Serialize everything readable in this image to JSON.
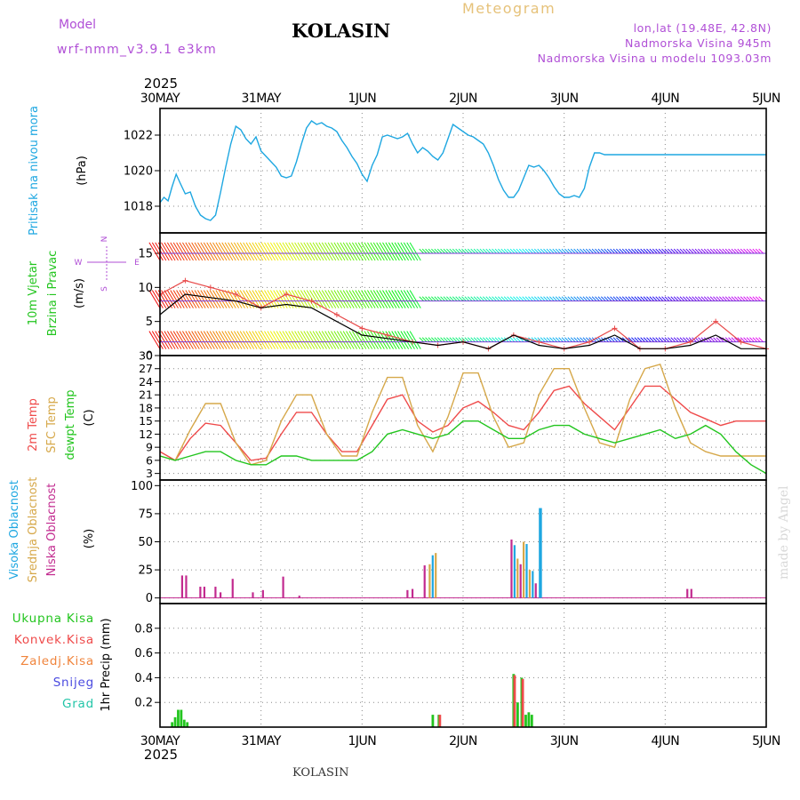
{
  "header": {
    "model_label": "Model",
    "model_name": "wrf-nmm_v3.9.1  e3km",
    "city": "KOLASIN",
    "title": "Meteogram",
    "lonlat": "lon,lat (19.48E, 42.8N)",
    "altitude": "Nadmorska Visina 945m",
    "model_altitude": "Nadmorska Visina u modelu 1093.03m",
    "watermark": "made by Angel",
    "footer_city": "KOLASIN"
  },
  "colors": {
    "pressure": "#1ea7e1",
    "t2m": "#ef4a4a",
    "sfc": "#d6a84a",
    "dew": "#22c51e",
    "wind_gust": "#e84a4a",
    "wind_speed": "#000000",
    "cloud_high": "#1ea7e1",
    "cloud_mid": "#d6a84a",
    "cloud_low": "#c22a8f",
    "precip_total": "#22c51e",
    "precip_conv": "#ef4a4a",
    "precip_ice": "#f0843c",
    "precip_snow": "#4a4ae0",
    "precip_hail": "#22c5a8",
    "purple_text": "#b04fd6"
  },
  "chart_data": [
    {
      "type": "line",
      "panel": "pressure",
      "ylabel": "Pritisak na nivou mora",
      "unit": "(hPa)",
      "ylim": [
        1016.5,
        1023.5
      ],
      "yticks": [
        1018,
        1020,
        1022
      ],
      "x_days": [
        "30MAY",
        "31MAY",
        "1JUN",
        "2JUN",
        "3JUN",
        "4JUN",
        "5JUN"
      ],
      "year": "2025",
      "x": [
        0,
        0.04,
        0.08,
        0.12,
        0.16,
        0.2,
        0.25,
        0.3,
        0.35,
        0.4,
        0.45,
        0.5,
        0.55,
        0.6,
        0.65,
        0.7,
        0.75,
        0.8,
        0.85,
        0.9,
        0.95,
        1.0,
        1.05,
        1.1,
        1.15,
        1.2,
        1.25,
        1.3,
        1.35,
        1.4,
        1.45,
        1.5,
        1.55,
        1.6,
        1.65,
        1.7,
        1.75,
        1.8,
        1.85,
        1.9,
        1.95,
        2.0,
        2.05,
        2.1,
        2.15,
        2.2,
        2.25,
        2.3,
        2.35,
        2.4,
        2.45,
        2.5,
        2.55,
        2.6,
        2.65,
        2.7,
        2.75,
        2.8,
        2.85,
        2.9,
        2.95,
        3.0,
        3.05,
        3.1,
        3.15,
        3.2,
        3.25,
        3.3,
        3.35,
        3.4,
        3.45,
        3.5,
        3.55,
        3.6,
        3.65,
        3.7,
        3.75,
        3.8,
        3.85,
        3.9,
        3.95,
        4.0,
        4.05,
        4.1,
        4.15,
        4.2,
        4.25,
        4.3,
        4.35,
        4.4,
        4.45,
        4.5,
        4.55,
        4.6,
        4.65,
        4.7,
        4.75,
        4.8,
        4.85,
        4.9,
        4.95,
        5.0,
        5.05,
        5.1,
        5.15,
        5.2,
        5.25,
        5.3,
        5.35,
        5.4,
        5.45,
        5.5,
        5.55,
        5.6,
        5.65,
        5.7,
        5.75,
        5.8,
        5.85,
        5.9,
        5.95,
        6.0
      ],
      "values": [
        1018.2,
        1018.5,
        1018.3,
        1019.1,
        1019.8,
        1019.3,
        1018.7,
        1018.8,
        1018.0,
        1017.5,
        1017.3,
        1017.2,
        1017.5,
        1018.8,
        1020.2,
        1021.5,
        1022.5,
        1022.3,
        1021.8,
        1021.5,
        1021.9,
        1021.1,
        1020.8,
        1020.5,
        1020.2,
        1019.7,
        1019.6,
        1019.7,
        1020.5,
        1021.5,
        1022.4,
        1022.8,
        1022.6,
        1022.7,
        1022.5,
        1022.4,
        1022.2,
        1021.7,
        1021.3,
        1020.8,
        1020.4,
        1019.8,
        1019.4,
        1020.3,
        1020.9,
        1021.9,
        1022.0,
        1021.9,
        1021.8,
        1021.9,
        1022.1,
        1021.5,
        1021.0,
        1021.3,
        1021.1,
        1020.8,
        1020.6,
        1021.0,
        1021.8,
        1022.6,
        1022.4,
        1022.2,
        1022.0,
        1021.9,
        1021.7,
        1021.5,
        1021.0,
        1020.3,
        1019.5,
        1018.9,
        1018.5,
        1018.5,
        1018.9,
        1019.6,
        1020.3,
        1020.2,
        1020.3,
        1020.0,
        1019.6,
        1019.1,
        1018.7,
        1018.5,
        1018.5,
        1018.6,
        1018.5,
        1019.0,
        1020.2,
        1021.0,
        1021.0,
        1020.9,
        1020.9,
        1020.9,
        1020.9,
        1020.9,
        1020.9,
        1020.9,
        1020.9,
        1020.9,
        1020.9,
        1020.9,
        1020.9,
        1020.9,
        1020.9,
        1020.9,
        1020.9,
        1020.9,
        1020.9,
        1020.9,
        1020.9,
        1020.9,
        1020.9,
        1020.9,
        1020.9,
        1020.9,
        1020.9,
        1020.9,
        1020.9,
        1020.9,
        1020.9,
        1020.9,
        1020.9,
        1020.9
      ]
    },
    {
      "type": "line",
      "panel": "wind",
      "ylabel_a": "10m Vjetar",
      "ylabel_b": "Brzina i Pravac",
      "unit": "(m/s)",
      "compass": [
        "N",
        "W",
        "E",
        "S"
      ],
      "ylim": [
        0,
        18
      ],
      "yticks": [
        0,
        5,
        10,
        15
      ],
      "series": [
        {
          "name": "gust",
          "x": [
            0,
            0.25,
            0.5,
            0.75,
            1.0,
            1.25,
            1.5,
            1.75,
            2.0,
            2.25,
            2.5,
            2.75,
            3.0,
            3.25,
            3.5,
            3.75,
            4.0,
            4.25,
            4.5,
            4.75,
            5.0,
            5.25,
            5.5,
            5.75,
            6.0
          ],
          "values": [
            9,
            11,
            10,
            9,
            7,
            9,
            8,
            6,
            4,
            3,
            2,
            1.5,
            2,
            1,
            3,
            2,
            1,
            2,
            4,
            1,
            1,
            2,
            5,
            2,
            1
          ]
        },
        {
          "name": "speed",
          "x": [
            0,
            0.25,
            0.5,
            0.75,
            1.0,
            1.25,
            1.5,
            1.75,
            2.0,
            2.25,
            2.5,
            2.75,
            3.0,
            3.25,
            3.5,
            3.75,
            4.0,
            4.25,
            4.5,
            4.75,
            5.0,
            5.25,
            5.5,
            5.75,
            6.0
          ],
          "values": [
            6,
            9,
            8.5,
            8,
            7,
            7.5,
            7,
            5,
            3,
            2.5,
            2,
            1.5,
            2,
            1,
            3,
            1.5,
            1,
            1.5,
            3,
            1,
            1,
            1.5,
            3,
            1,
            1
          ]
        }
      ],
      "barb_rows": [
        15,
        8,
        2
      ],
      "barb_row_end": 2.6
    },
    {
      "type": "line",
      "panel": "temperature",
      "labels": [
        "2m Temp",
        "SFC Temp",
        "dewpt Temp"
      ],
      "unit": "(C)",
      "ylim": [
        1.5,
        30
      ],
      "yticks": [
        3,
        6,
        9,
        12,
        15,
        18,
        21,
        24,
        27,
        30
      ],
      "x": [
        0,
        0.15,
        0.3,
        0.45,
        0.6,
        0.75,
        0.9,
        1.05,
        1.2,
        1.35,
        1.5,
        1.65,
        1.8,
        1.95,
        2.1,
        2.25,
        2.4,
        2.55,
        2.7,
        2.85,
        3.0,
        3.15,
        3.3,
        3.45,
        3.6,
        3.75,
        3.9,
        4.05,
        4.2,
        4.35,
        4.5,
        4.65,
        4.8,
        4.95,
        5.1,
        5.25,
        5.4,
        5.55,
        5.7,
        5.85,
        6.0
      ],
      "series": [
        {
          "name": "2m Temp",
          "values": [
            8,
            6,
            11,
            14.5,
            14,
            10,
            6,
            6.5,
            12,
            17,
            17,
            12,
            8,
            8,
            14,
            20,
            21,
            15,
            12.5,
            14,
            18,
            19.5,
            17,
            14,
            13,
            17,
            22,
            23,
            19,
            16,
            13,
            18,
            23,
            23,
            20,
            17,
            15.5,
            14,
            15,
            15,
            15
          ]
        },
        {
          "name": "SFC Temp",
          "values": [
            7,
            6,
            13,
            19,
            19,
            10,
            5,
            6,
            15,
            21,
            21,
            12,
            7,
            7,
            17,
            25,
            25,
            14,
            8,
            16,
            26,
            26,
            16,
            9,
            10,
            21,
            27,
            27,
            18,
            10,
            9,
            20,
            27,
            28,
            18,
            10,
            8,
            7,
            7,
            7,
            7
          ]
        },
        {
          "name": "dewpt Temp",
          "values": [
            7,
            6,
            7,
            8,
            8,
            6,
            5,
            5,
            7,
            7,
            6,
            6,
            6,
            6,
            8,
            12,
            13,
            12,
            11,
            12,
            15,
            15,
            13,
            11,
            11,
            13,
            14,
            14,
            12,
            11,
            10,
            11,
            12,
            13,
            11,
            12,
            14,
            12,
            8,
            5,
            3
          ]
        }
      ]
    },
    {
      "type": "bar",
      "panel": "clouds",
      "labels": [
        "Visoka Oblacnost",
        "Srednja Oblacnost",
        "Niska Oblacnost"
      ],
      "unit": "(%)",
      "ylim": [
        -5,
        105
      ],
      "yticks": [
        0,
        25,
        50,
        75,
        100
      ],
      "bars": [
        {
          "x": 0.22,
          "layer": "low",
          "value": 20
        },
        {
          "x": 0.26,
          "layer": "low",
          "value": 20
        },
        {
          "x": 0.4,
          "layer": "low",
          "value": 10
        },
        {
          "x": 0.44,
          "layer": "low",
          "value": 10
        },
        {
          "x": 0.55,
          "layer": "low",
          "value": 10
        },
        {
          "x": 0.6,
          "layer": "low",
          "value": 5
        },
        {
          "x": 0.72,
          "layer": "low",
          "value": 17
        },
        {
          "x": 0.92,
          "layer": "low",
          "value": 5
        },
        {
          "x": 1.02,
          "layer": "low",
          "value": 7
        },
        {
          "x": 1.22,
          "layer": "low",
          "value": 19
        },
        {
          "x": 1.38,
          "layer": "low",
          "value": 2
        },
        {
          "x": 2.45,
          "layer": "low",
          "value": 7
        },
        {
          "x": 2.5,
          "layer": "low",
          "value": 8
        },
        {
          "x": 2.62,
          "layer": "low",
          "value": 29
        },
        {
          "x": 2.67,
          "layer": "mid",
          "value": 30
        },
        {
          "x": 2.7,
          "layer": "high",
          "value": 38
        },
        {
          "x": 2.73,
          "layer": "mid",
          "value": 40
        },
        {
          "x": 3.48,
          "layer": "low",
          "value": 52
        },
        {
          "x": 3.51,
          "layer": "high",
          "value": 47
        },
        {
          "x": 3.54,
          "layer": "mid",
          "value": 35
        },
        {
          "x": 3.57,
          "layer": "low",
          "value": 30
        },
        {
          "x": 3.6,
          "layer": "mid",
          "value": 50
        },
        {
          "x": 3.63,
          "layer": "high",
          "value": 48
        },
        {
          "x": 3.66,
          "layer": "mid",
          "value": 25
        },
        {
          "x": 3.69,
          "layer": "high",
          "value": 24
        },
        {
          "x": 3.72,
          "layer": "low",
          "value": 13
        },
        {
          "x": 3.76,
          "layer": "high",
          "value": 80
        },
        {
          "x": 5.22,
          "layer": "low",
          "value": 8
        },
        {
          "x": 5.26,
          "layer": "low",
          "value": 8
        }
      ]
    },
    {
      "type": "bar",
      "panel": "precipitation",
      "labels": [
        "Ukupna Kisa",
        "Konvek.Kisa",
        "Zaledj.Kisa",
        "Snijeg",
        "Grad"
      ],
      "ylabel": "1hr Precip",
      "unit": "(mm)",
      "ylim": [
        0,
        1.0
      ],
      "yticks": [
        0.2,
        0.4,
        0.6,
        0.8
      ],
      "bars": [
        {
          "x": 0.12,
          "series": "total",
          "value": 0.04
        },
        {
          "x": 0.15,
          "series": "total",
          "value": 0.08
        },
        {
          "x": 0.18,
          "series": "total",
          "value": 0.14
        },
        {
          "x": 0.21,
          "series": "total",
          "value": 0.14
        },
        {
          "x": 0.24,
          "series": "total",
          "value": 0.06
        },
        {
          "x": 0.27,
          "series": "total",
          "value": 0.04
        },
        {
          "x": 2.7,
          "series": "total",
          "value": 0.1
        },
        {
          "x": 2.76,
          "series": "total",
          "value": 0.1
        },
        {
          "x": 2.77,
          "series": "conv",
          "value": 0.1
        },
        {
          "x": 3.5,
          "series": "total",
          "value": 0.43
        },
        {
          "x": 3.51,
          "series": "conv",
          "value": 0.42
        },
        {
          "x": 3.54,
          "series": "total",
          "value": 0.2
        },
        {
          "x": 3.58,
          "series": "total",
          "value": 0.4
        },
        {
          "x": 3.59,
          "series": "conv",
          "value": 0.39
        },
        {
          "x": 3.62,
          "series": "total",
          "value": 0.1
        },
        {
          "x": 3.65,
          "series": "total",
          "value": 0.12
        },
        {
          "x": 3.68,
          "series": "total",
          "value": 0.1
        }
      ]
    }
  ]
}
